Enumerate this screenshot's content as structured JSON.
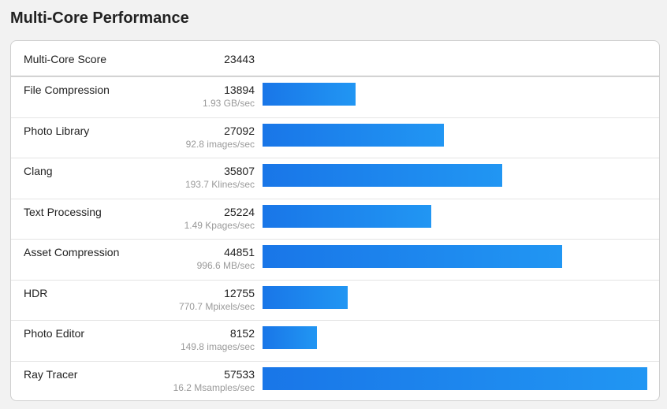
{
  "header": {
    "title": "Multi-Core Performance"
  },
  "table": {
    "summary": {
      "label": "Multi-Core Score",
      "score": 23443
    },
    "rows": [
      {
        "name": "File Compression",
        "score": 13894,
        "throughput": "1.93 GB/sec"
      },
      {
        "name": "Photo Library",
        "score": 27092,
        "throughput": "92.8 images/sec"
      },
      {
        "name": "Clang",
        "score": 35807,
        "throughput": "193.7 Klines/sec"
      },
      {
        "name": "Text Processing",
        "score": 25224,
        "throughput": "1.49 Kpages/sec"
      },
      {
        "name": "Asset Compression",
        "score": 44851,
        "throughput": "996.6 MB/sec"
      },
      {
        "name": "HDR",
        "score": 12755,
        "throughput": "770.7 Mpixels/sec"
      },
      {
        "name": "Photo Editor",
        "score": 8152,
        "throughput": "149.8 images/sec"
      },
      {
        "name": "Ray Tracer",
        "score": 57533,
        "throughput": "16.2 Msamples/sec"
      }
    ]
  }
}
